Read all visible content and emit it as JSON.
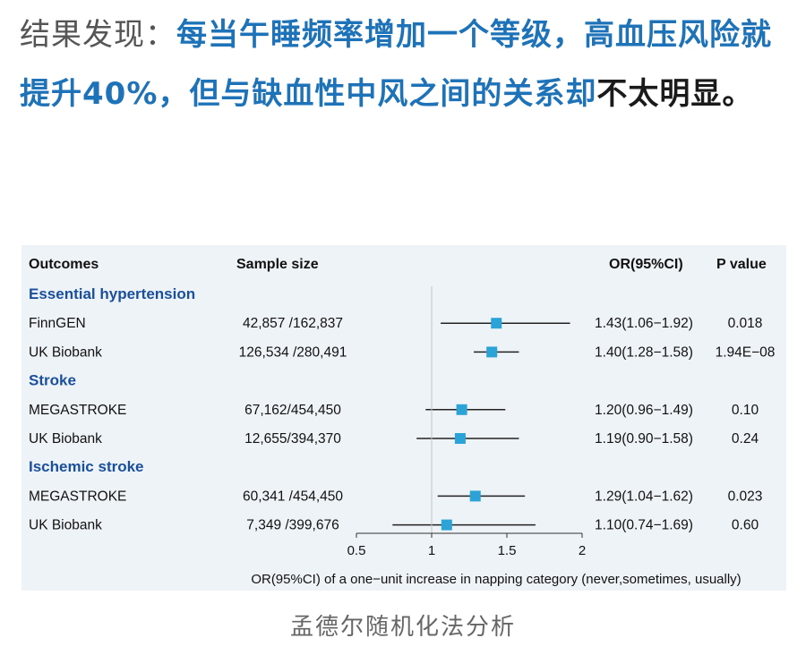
{
  "headline": {
    "lead": "结果发现：",
    "highlight": "每当午睡频率增加一个等级，高血压风险就提升40%，但与缺血性中风之间的关系却",
    "tail": "不太明显。"
  },
  "caption": "孟德尔随机化法分析",
  "colors": {
    "marker": "#2ba3d6",
    "heading": "#1a4f9c",
    "panel": "#eef3f8",
    "headline_blue": "#1e73b8"
  },
  "chart_data": {
    "type": "forest",
    "columns": {
      "outcomes": "Outcomes",
      "sample": "Sample size",
      "or": "OR(95%CI)",
      "p": "P value"
    },
    "groups": [
      {
        "heading": "Essential hypertension",
        "rows": [
          {
            "label": "FinnGEN",
            "sample": "42,857 /162,837",
            "or": 1.43,
            "lo": 1.06,
            "hi": 1.92,
            "or_text": "1.43(1.06−1.92)",
            "p": "0.018"
          },
          {
            "label": "UK Biobank",
            "sample": "126,534 /280,491",
            "or": 1.4,
            "lo": 1.28,
            "hi": 1.58,
            "or_text": "1.40(1.28−1.58)",
            "p": "1.94E−08"
          }
        ]
      },
      {
        "heading": "Stroke",
        "rows": [
          {
            "label": "MEGASTROKE",
            "sample": "67,162/454,450",
            "or": 1.2,
            "lo": 0.96,
            "hi": 1.49,
            "or_text": "1.20(0.96−1.49)",
            "p": "0.10"
          },
          {
            "label": "UK Biobank",
            "sample": "12,655/394,370",
            "or": 1.19,
            "lo": 0.9,
            "hi": 1.58,
            "or_text": "1.19(0.90−1.58)",
            "p": "0.24"
          }
        ]
      },
      {
        "heading": "Ischemic stroke",
        "rows": [
          {
            "label": "MEGASTROKE",
            "sample": "60,341 /454,450",
            "or": 1.29,
            "lo": 1.04,
            "hi": 1.62,
            "or_text": "1.29(1.04−1.62)",
            "p": "0.023"
          },
          {
            "label": "UK Biobank",
            "sample": "7,349 /399,676",
            "or": 1.1,
            "lo": 0.74,
            "hi": 1.69,
            "or_text": "1.10(0.74−1.69)",
            "p": "0.60"
          }
        ]
      }
    ],
    "xticks": [
      "0.5",
      "1",
      "1.5",
      "2"
    ],
    "xlim": [
      0.5,
      2
    ],
    "reference": 1,
    "xlabel": "OR(95%CI) of a one−unit increase in napping category (never,sometimes, usually)"
  }
}
